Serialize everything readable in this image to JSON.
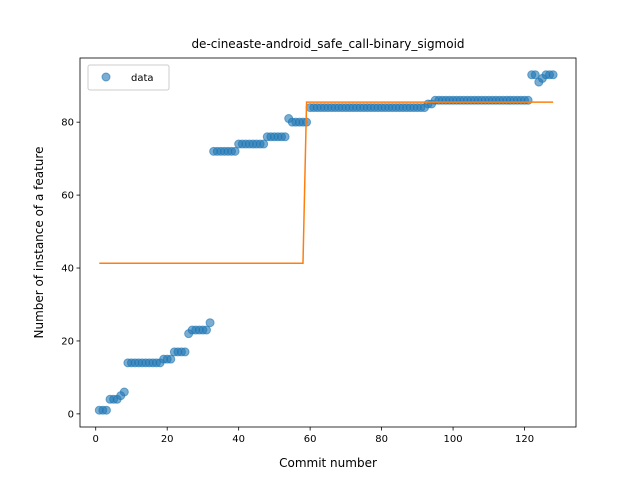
{
  "chart_data": {
    "type": "scatter",
    "title": "de-cineaste-android_safe_call-binary_sigmoid",
    "xlabel": "Commit number",
    "ylabel": "Number of instance of a feature",
    "xlim": [
      -4.4,
      134.4
    ],
    "ylim": [
      -3.6,
      97.6
    ],
    "xticks": [
      0,
      20,
      40,
      60,
      80,
      100,
      120
    ],
    "yticks": [
      0,
      20,
      40,
      60,
      80
    ],
    "grid": false,
    "legend": {
      "position": "top-left",
      "entries": [
        "data"
      ]
    },
    "colors": {
      "data": "#1f77b4",
      "fit": "#ff7f0e"
    },
    "series": [
      {
        "name": "data",
        "kind": "scatter",
        "x": [
          1,
          2,
          3,
          4,
          5,
          6,
          7,
          8,
          9,
          10,
          11,
          12,
          13,
          14,
          15,
          16,
          17,
          18,
          19,
          20,
          21,
          22,
          23,
          24,
          25,
          26,
          27,
          28,
          29,
          30,
          31,
          32,
          33,
          34,
          35,
          36,
          37,
          38,
          39,
          40,
          41,
          42,
          43,
          44,
          45,
          46,
          47,
          48,
          49,
          50,
          51,
          52,
          53,
          54,
          55,
          56,
          57,
          58,
          59,
          60,
          61,
          62,
          63,
          64,
          65,
          66,
          67,
          68,
          69,
          70,
          71,
          72,
          73,
          74,
          75,
          76,
          77,
          78,
          79,
          80,
          81,
          82,
          83,
          84,
          85,
          86,
          87,
          88,
          89,
          90,
          91,
          92,
          93,
          94,
          95,
          96,
          97,
          98,
          99,
          100,
          101,
          102,
          103,
          104,
          105,
          106,
          107,
          108,
          109,
          110,
          111,
          112,
          113,
          114,
          115,
          116,
          117,
          118,
          119,
          120,
          121,
          122,
          123,
          124,
          125,
          126,
          127,
          128
        ],
        "y": [
          1,
          1,
          1,
          4,
          4,
          4,
          5,
          6,
          14,
          14,
          14,
          14,
          14,
          14,
          14,
          14,
          14,
          14,
          15,
          15,
          15,
          17,
          17,
          17,
          17,
          22,
          23,
          23,
          23,
          23,
          23,
          25,
          72,
          72,
          72,
          72,
          72,
          72,
          72,
          74,
          74,
          74,
          74,
          74,
          74,
          74,
          74,
          76,
          76,
          76,
          76,
          76,
          76,
          81,
          80,
          80,
          80,
          80,
          80,
          84,
          84,
          84,
          84,
          84,
          84,
          84,
          84,
          84,
          84,
          84,
          84,
          84,
          84,
          84,
          84,
          84,
          84,
          84,
          84,
          84,
          84,
          84,
          84,
          84,
          84,
          84,
          84,
          84,
          84,
          84,
          84,
          84,
          85,
          85,
          86,
          86,
          86,
          86,
          86,
          86,
          86,
          86,
          86,
          86,
          86,
          86,
          86,
          86,
          86,
          86,
          86,
          86,
          86,
          86,
          86,
          86,
          86,
          86,
          86,
          86,
          86,
          93,
          93,
          91,
          92,
          93,
          93,
          93
        ]
      },
      {
        "kind": "line",
        "x": [
          1,
          58,
          59,
          128
        ],
        "y": [
          41.3,
          41.3,
          85.5,
          85.5
        ]
      }
    ]
  }
}
